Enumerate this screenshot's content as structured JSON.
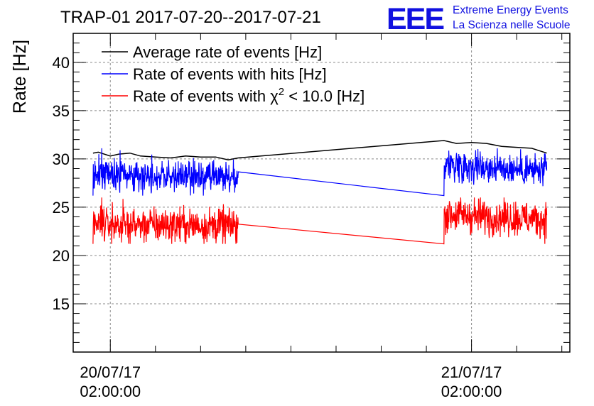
{
  "chart_data": {
    "type": "line",
    "title": "TRAP-01 2017-07-20--2017-07-21",
    "ylabel": "Rate [Hz]",
    "xlabel": "",
    "ylim": [
      10,
      43
    ],
    "yticks": [
      15,
      20,
      25,
      30,
      35,
      40
    ],
    "xlim": [
      "2017-07-19 23:32:00",
      "2017-07-21 08:32:00"
    ],
    "xticks": [
      {
        "time": "2017-07-20 02:00:00",
        "date": "20/07/17",
        "clock": "02:00:00"
      },
      {
        "time": "2017-07-21 02:00:00",
        "date": "21/07/17",
        "clock": "02:00:00"
      }
    ],
    "grid": true,
    "legend_position": "top-left",
    "series": [
      {
        "name": "Average rate of events [Hz]",
        "color": "#000000",
        "style": "smooth",
        "x": [
          "2017-07-20 00:51",
          "2017-07-20 01:12",
          "2017-07-20 02:00",
          "2017-07-20 02:34",
          "2017-07-20 03:18",
          "2017-07-20 04:00",
          "2017-07-20 05:00",
          "2017-07-20 06:00",
          "2017-07-20 07:00",
          "2017-07-20 08:00",
          "2017-07-20 09:00",
          "2017-07-20 09:50",
          "2017-07-20 10:30",
          "2017-07-21 00:10",
          "2017-07-21 01:00",
          "2017-07-21 02:00",
          "2017-07-21 03:00",
          "2017-07-21 04:00",
          "2017-07-21 05:00",
          "2017-07-21 06:00",
          "2017-07-21 07:00"
        ],
        "values": [
          30.6,
          30.7,
          30.3,
          30.5,
          30.6,
          30.3,
          30.2,
          30.1,
          30.3,
          30.2,
          30.2,
          29.9,
          30.1,
          31.9,
          31.6,
          31.7,
          31.6,
          31.3,
          31.2,
          31.1,
          30.6
        ]
      },
      {
        "name": "Rate of events with hits [Hz]",
        "color": "#0000ff",
        "style": "noisy",
        "mean": 28.1,
        "min": 26.2,
        "max": 31.1,
        "segments": [
          {
            "from": "2017-07-20 00:51",
            "to": "2017-07-20 10:30",
            "start_mean": 28.5,
            "end_mean": 27.9
          },
          {
            "from": "2017-07-21 00:10",
            "to": "2017-07-21 07:00",
            "start_mean": 29.5,
            "end_mean": 28.7
          }
        ]
      },
      {
        "name": "Rate of events with χ² < 10.0 [Hz]",
        "color": "#ff0000",
        "style": "noisy",
        "mean": 23.3,
        "min": 21.2,
        "max": 26.0,
        "segments": [
          {
            "from": "2017-07-20 00:51",
            "to": "2017-07-20 10:30",
            "start_mean": 23.2,
            "end_mean": 23.1
          },
          {
            "from": "2017-07-21 00:10",
            "to": "2017-07-21 07:00",
            "start_mean": 24.3,
            "end_mean": 23.7
          }
        ]
      }
    ],
    "legend_labels": [
      {
        "pre": "Average rate of events [Hz]",
        "sup": "",
        "post": ""
      },
      {
        "pre": "Rate of events with hits [Hz]",
        "sup": "",
        "post": ""
      },
      {
        "pre": "Rate of events with χ",
        "sup": "2",
        "post": " < 10.0 [Hz]"
      }
    ]
  },
  "logo": {
    "mark": "EEE",
    "line1": "Extreme Energy Events",
    "line2": "La Scienza nelle Scuole",
    "color": "#1010e0"
  }
}
